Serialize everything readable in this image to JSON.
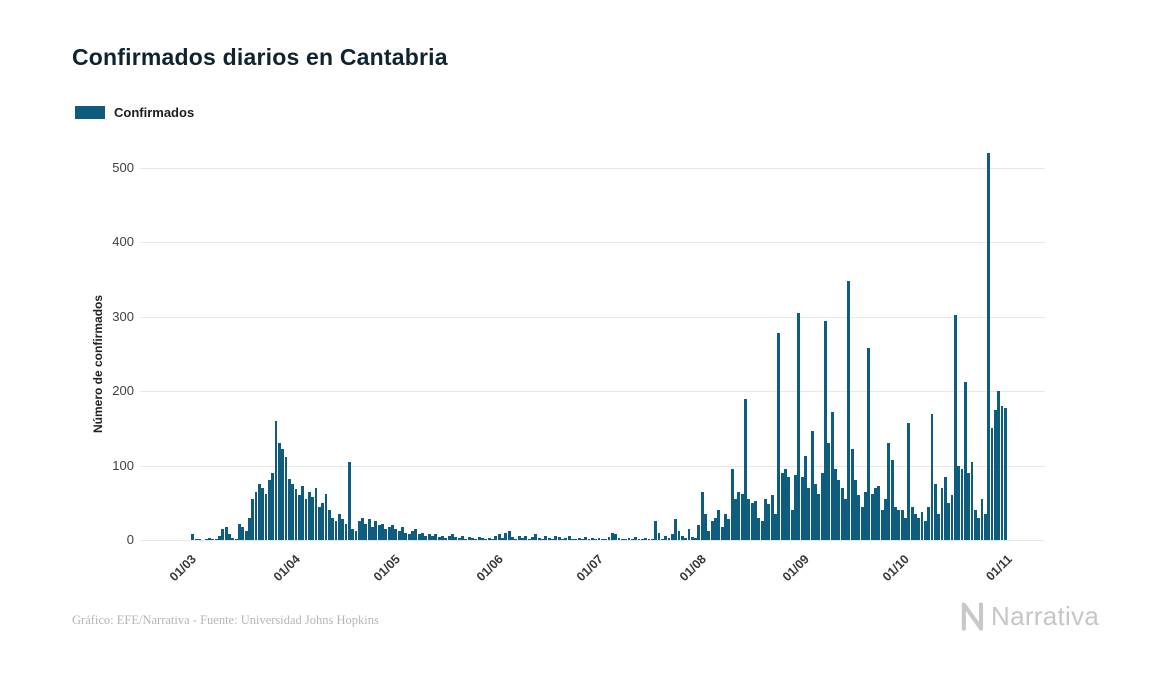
{
  "title": "Confirmados diarios en Cantabria",
  "legend": {
    "label": "Confirmados",
    "color": "#0e5d7f"
  },
  "footer": {
    "source": "Gráfico: EFE/Narrativa - Fuente: Universidad Johns Hopkins"
  },
  "branding": {
    "logo_text": "Narrativa"
  },
  "chart_data": {
    "type": "bar",
    "title": "Confirmados diarios en Cantabria",
    "series_name": "Confirmados",
    "xlabel": "",
    "ylabel": "Número de confirmados",
    "bar_color": "#0e5d7f",
    "grid": "horizontal",
    "legend_position": "top-left",
    "ylim": [
      0,
      540
    ],
    "yticks": [
      0,
      100,
      200,
      300,
      400,
      500
    ],
    "x_tick_labels": [
      "01/03",
      "01/04",
      "01/05",
      "01/06",
      "01/07",
      "01/08",
      "01/09",
      "01/10",
      "01/11"
    ],
    "x_tick_indices": [
      0,
      31,
      61,
      92,
      122,
      153,
      184,
      214,
      245
    ],
    "values": [
      0,
      8,
      2,
      1,
      0,
      2,
      3,
      1,
      2,
      5,
      15,
      18,
      8,
      3,
      2,
      22,
      18,
      12,
      30,
      55,
      65,
      75,
      70,
      62,
      80,
      90,
      160,
      130,
      122,
      112,
      82,
      75,
      68,
      60,
      72,
      55,
      65,
      58,
      70,
      45,
      50,
      62,
      40,
      30,
      25,
      35,
      28,
      22,
      105,
      15,
      12,
      25,
      30,
      22,
      28,
      18,
      25,
      20,
      22,
      15,
      18,
      20,
      15,
      12,
      18,
      10,
      8,
      12,
      15,
      8,
      10,
      6,
      8,
      5,
      8,
      4,
      6,
      3,
      5,
      8,
      4,
      3,
      5,
      2,
      4,
      3,
      2,
      4,
      3,
      2,
      3,
      2,
      5,
      8,
      3,
      10,
      12,
      4,
      2,
      5,
      3,
      6,
      2,
      4,
      8,
      3,
      2,
      5,
      3,
      2,
      6,
      4,
      2,
      3,
      5,
      2,
      1,
      3,
      2,
      4,
      2,
      3,
      2,
      3,
      1,
      2,
      4,
      10,
      8,
      3,
      2,
      1,
      3,
      2,
      4,
      1,
      2,
      3,
      1,
      2,
      25,
      10,
      2,
      5,
      3,
      8,
      28,
      12,
      6,
      3,
      15,
      4,
      3,
      20,
      65,
      35,
      12,
      25,
      30,
      40,
      18,
      35,
      28,
      95,
      55,
      65,
      62,
      190,
      55,
      50,
      52,
      30,
      25,
      55,
      48,
      60,
      35,
      278,
      90,
      95,
      85,
      40,
      88,
      305,
      85,
      113,
      70,
      147,
      75,
      62,
      90,
      295,
      130,
      172,
      95,
      80,
      70,
      55,
      348,
      122,
      80,
      60,
      45,
      65,
      258,
      62,
      70,
      72,
      40,
      55,
      130,
      107,
      45,
      40,
      40,
      30,
      157,
      45,
      35,
      30,
      38,
      25,
      45,
      170,
      75,
      35,
      70,
      85,
      50,
      60,
      303,
      100,
      95,
      213,
      90,
      105,
      40,
      30,
      55,
      35,
      520,
      150,
      175,
      200,
      180,
      178
    ]
  }
}
